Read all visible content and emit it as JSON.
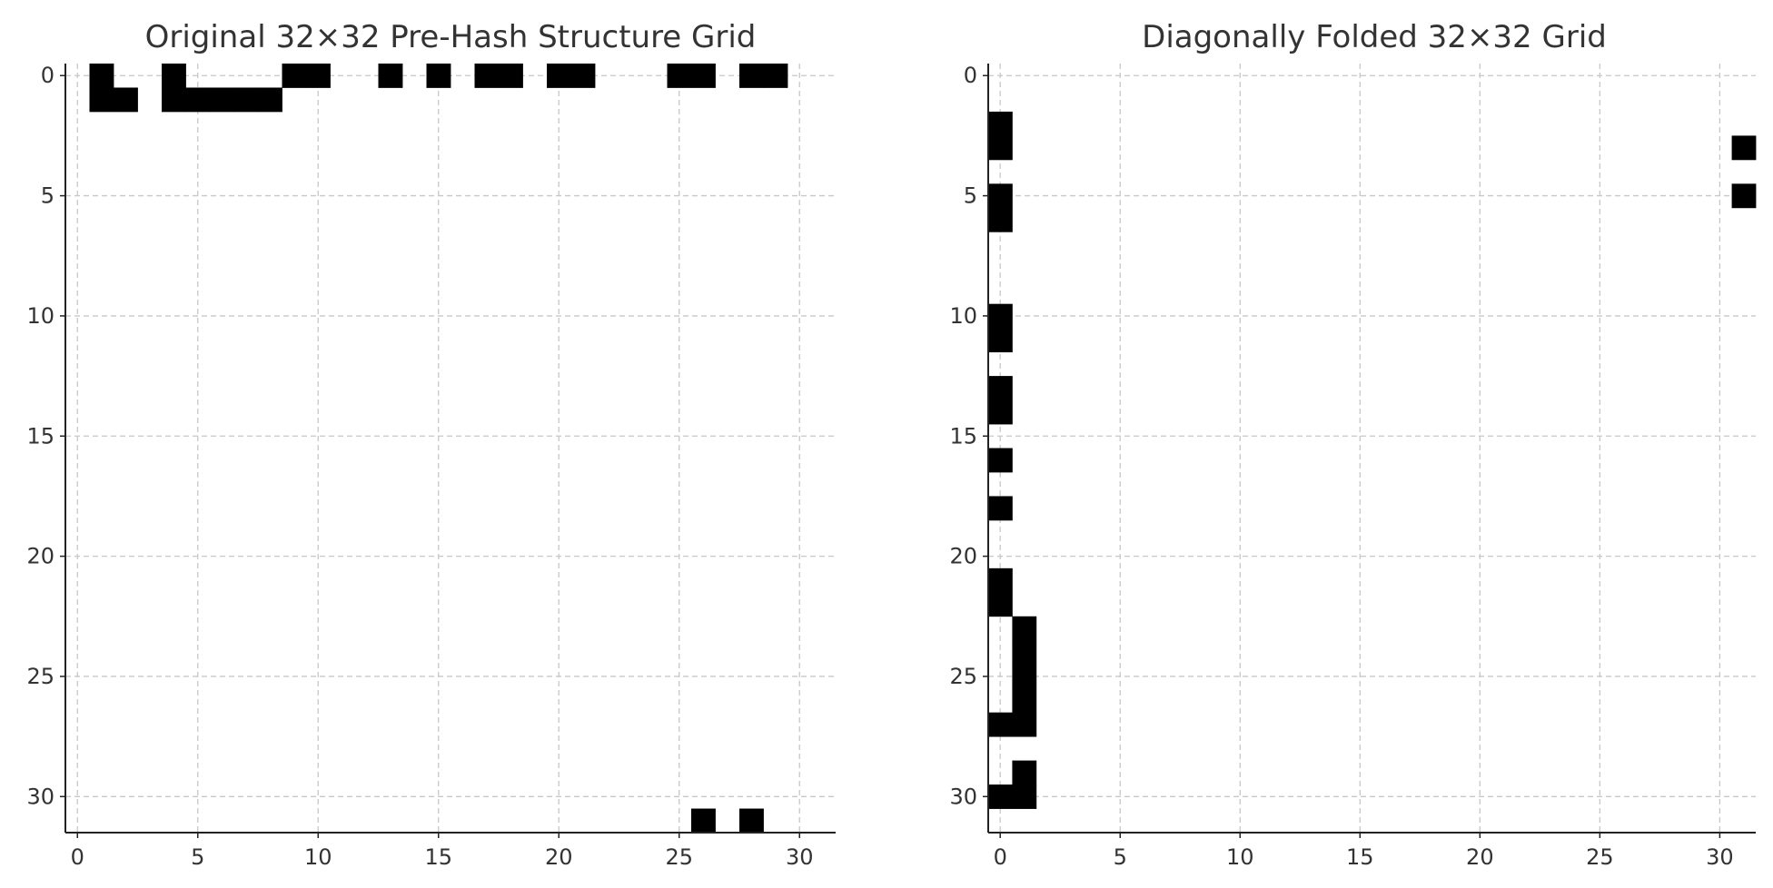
{
  "chart_data": [
    {
      "type": "heatmap",
      "title": "Original 32×32 Pre-Hash Structure Grid",
      "xlabel": "",
      "ylabel": "",
      "grid_size": 32,
      "xlim": [
        -0.5,
        31.5
      ],
      "ylim": [
        31.5,
        -0.5
      ],
      "y_inverted": true,
      "grid": true,
      "ticks": [
        0,
        5,
        10,
        15,
        20,
        25,
        30
      ],
      "tick_labels": [
        "0",
        "5",
        "10",
        "15",
        "20",
        "25",
        "30"
      ],
      "colormap": {
        "0": "#ffffff",
        "1": "#000000"
      },
      "filled_cells": [
        [
          0,
          1
        ],
        [
          0,
          4
        ],
        [
          0,
          9
        ],
        [
          0,
          10
        ],
        [
          0,
          13
        ],
        [
          0,
          15
        ],
        [
          0,
          17
        ],
        [
          0,
          18
        ],
        [
          0,
          20
        ],
        [
          0,
          21
        ],
        [
          0,
          25
        ],
        [
          0,
          26
        ],
        [
          0,
          28
        ],
        [
          0,
          29
        ],
        [
          1,
          1
        ],
        [
          1,
          2
        ],
        [
          1,
          4
        ],
        [
          1,
          5
        ],
        [
          1,
          6
        ],
        [
          1,
          7
        ],
        [
          1,
          8
        ],
        [
          31,
          26
        ],
        [
          31,
          28
        ]
      ]
    },
    {
      "type": "heatmap",
      "title": "Diagonally Folded 32×32 Grid",
      "xlabel": "",
      "ylabel": "",
      "grid_size": 32,
      "xlim": [
        -0.5,
        31.5
      ],
      "ylim": [
        31.5,
        -0.5
      ],
      "y_inverted": true,
      "grid": true,
      "ticks": [
        0,
        5,
        10,
        15,
        20,
        25,
        30
      ],
      "tick_labels": [
        "0",
        "5",
        "10",
        "15",
        "20",
        "25",
        "30"
      ],
      "colormap": {
        "0": "#ffffff",
        "1": "#000000"
      },
      "filled_cells": [
        [
          2,
          0
        ],
        [
          3,
          0
        ],
        [
          3,
          31
        ],
        [
          5,
          0
        ],
        [
          5,
          31
        ],
        [
          6,
          0
        ],
        [
          10,
          0
        ],
        [
          11,
          0
        ],
        [
          13,
          0
        ],
        [
          14,
          0
        ],
        [
          16,
          0
        ],
        [
          18,
          0
        ],
        [
          21,
          0
        ],
        [
          22,
          0
        ],
        [
          23,
          1
        ],
        [
          24,
          1
        ],
        [
          25,
          1
        ],
        [
          26,
          1
        ],
        [
          27,
          0
        ],
        [
          27,
          1
        ],
        [
          29,
          1
        ],
        [
          30,
          0
        ],
        [
          30,
          1
        ]
      ]
    }
  ]
}
